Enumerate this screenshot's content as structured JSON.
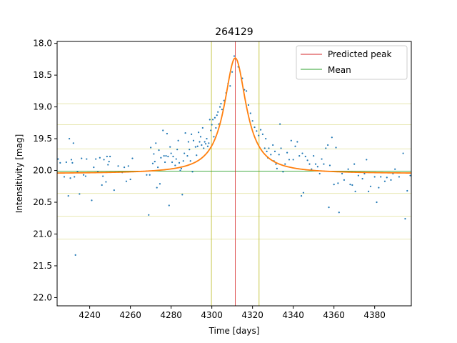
{
  "chart_data": {
    "type": "scatter",
    "title": "264129",
    "xlabel": "Time [days]",
    "ylabel": "Intensitivity [mag]",
    "xlim": [
      4224,
      4398
    ],
    "ylim": [
      22.13,
      17.97
    ],
    "y_inverted": true,
    "x_ticks": [
      4240,
      4260,
      4280,
      4300,
      4320,
      4340,
      4360,
      4380
    ],
    "y_ticks": [
      18.0,
      18.5,
      19.0,
      19.5,
      20.0,
      20.5,
      21.0,
      21.5,
      22.0
    ],
    "x_tick_labels": [
      "4240",
      "4260",
      "4280",
      "4300",
      "4320",
      "4340",
      "4360",
      "4380"
    ],
    "y_tick_labels": [
      "18.0",
      "18.5",
      "19.0",
      "19.5",
      "20.0",
      "20.5",
      "21.0",
      "21.5",
      "22.0"
    ],
    "legend": {
      "position": "top-right",
      "entries": [
        {
          "label": "Predicted peak",
          "color": "#d62728"
        },
        {
          "label": "Mean",
          "color": "#2ca02c"
        }
      ]
    },
    "predicted_peak": 4311.5,
    "mean": 20.01,
    "window_lines_x": [
      4299.8,
      4323.2
    ],
    "band_lines_y": [
      18.95,
      19.28,
      19.66,
      20.36,
      20.72,
      21.08
    ],
    "colors": {
      "points": "#1f77b4",
      "fit": "#ff7f0e",
      "peak": "#d62728",
      "mean": "#2ca02c",
      "window": "#bcbd22"
    },
    "fit": {
      "model": "lorentzian",
      "baseline": 20.05,
      "peak_x": 4311.5,
      "peak_y": 18.23,
      "gamma": 6.5
    },
    "series": [
      {
        "points": [
          [
            4224.5,
            19.82
          ],
          [
            4225.5,
            19.88
          ],
          [
            4227.5,
            20.1
          ],
          [
            4228.5,
            19.87
          ],
          [
            4229.5,
            20.4
          ],
          [
            4230,
            19.5
          ],
          [
            4230.5,
            20.12
          ],
          [
            4231,
            19.83
          ],
          [
            4231.5,
            19.88
          ],
          [
            4232,
            19.57
          ],
          [
            4232.5,
            20.1
          ],
          [
            4233,
            21.33
          ],
          [
            4234,
            20.02
          ],
          [
            4235,
            20.37
          ],
          [
            4236,
            19.81
          ],
          [
            4237,
            20.07
          ],
          [
            4238,
            20.09
          ],
          [
            4238.5,
            19.82
          ],
          [
            4241,
            20.47
          ],
          [
            4242,
            19.95
          ],
          [
            4243,
            19.82
          ],
          [
            4244,
            20.02
          ],
          [
            4245,
            19.8
          ],
          [
            4246,
            20.23
          ],
          [
            4246.5,
            20.09
          ],
          [
            4247,
            19.83
          ],
          [
            4248,
            20.18
          ],
          [
            4248.5,
            19.78
          ],
          [
            4249,
            19.91
          ],
          [
            4249.5,
            19.86
          ],
          [
            4250,
            19.78
          ],
          [
            4252,
            20.31
          ],
          [
            4254,
            19.93
          ],
          [
            4256,
            20.03
          ],
          [
            4257,
            19.95
          ],
          [
            4258,
            20.17
          ],
          [
            4259,
            19.93
          ],
          [
            4260,
            20.14
          ],
          [
            4261,
            19.81
          ],
          [
            4268,
            20.07
          ],
          [
            4269,
            20.7
          ],
          [
            4269.5,
            20.07
          ],
          [
            4270,
            19.64
          ],
          [
            4271,
            19.89
          ],
          [
            4271.5,
            19.74
          ],
          [
            4272,
            19.86
          ],
          [
            4272.5,
            19.57
          ],
          [
            4273,
            20.27
          ],
          [
            4273.5,
            19.95
          ],
          [
            4274,
            19.68
          ],
          [
            4274.5,
            20.21
          ],
          [
            4275,
            19.8
          ],
          [
            4276,
            19.37
          ],
          [
            4276.5,
            19.77
          ],
          [
            4277,
            19.87
          ],
          [
            4277.5,
            19.77
          ],
          [
            4278,
            19.42
          ],
          [
            4278.5,
            19.78
          ],
          [
            4279,
            20.55
          ],
          [
            4279.5,
            19.63
          ],
          [
            4280,
            19.73
          ],
          [
            4280.5,
            19.87
          ],
          [
            4281,
            19.78
          ],
          [
            4282,
            19.92
          ],
          [
            4282.5,
            19.82
          ],
          [
            4283,
            19.67
          ],
          [
            4283.5,
            19.53
          ],
          [
            4284,
            19.88
          ],
          [
            4284.5,
            20.0
          ],
          [
            4285,
            19.97
          ],
          [
            4285.5,
            20.38
          ],
          [
            4286,
            19.85
          ],
          [
            4286.5,
            19.73
          ],
          [
            4287,
            19.41
          ],
          [
            4288,
            19.77
          ],
          [
            4288.5,
            19.55
          ],
          [
            4289,
            19.67
          ],
          [
            4289.5,
            19.85
          ],
          [
            4290,
            19.43
          ],
          [
            4290.5,
            20.02
          ],
          [
            4291,
            19.53
          ],
          [
            4292,
            19.63
          ],
          [
            4292.5,
            19.76
          ],
          [
            4293,
            19.62
          ],
          [
            4293.5,
            19.4
          ],
          [
            4294,
            19.55
          ],
          [
            4294.5,
            19.47
          ],
          [
            4295,
            19.6
          ],
          [
            4295.5,
            19.33
          ],
          [
            4296,
            19.65
          ],
          [
            4296.5,
            19.55
          ],
          [
            4297,
            19.58
          ],
          [
            4297.5,
            19.5
          ],
          [
            4298,
            19.62
          ],
          [
            4298.5,
            19.57
          ],
          [
            4299,
            19.2
          ],
          [
            4299.5,
            19.37
          ],
          [
            4300,
            19.28
          ],
          [
            4300.5,
            19.2
          ],
          [
            4301,
            19.47
          ],
          [
            4301.5,
            19.17
          ],
          [
            4302,
            19.33
          ],
          [
            4302.5,
            19.13
          ],
          [
            4303,
            19.08
          ],
          [
            4303.5,
            19.27
          ],
          [
            4304,
            19.0
          ],
          [
            4304.5,
            18.95
          ],
          [
            4305,
            19.04
          ],
          [
            4306,
            18.9
          ],
          [
            4307,
            18.78
          ],
          [
            4308,
            18.63
          ],
          [
            4309,
            18.67
          ],
          [
            4310,
            18.45
          ],
          [
            4311,
            18.2
          ],
          [
            4313,
            18.37
          ],
          [
            4315,
            18.55
          ],
          [
            4316,
            18.73
          ],
          [
            4317,
            18.75
          ],
          [
            4318,
            18.97
          ],
          [
            4319,
            19.1
          ],
          [
            4320,
            19.22
          ],
          [
            4321,
            19.32
          ],
          [
            4322,
            19.38
          ],
          [
            4323,
            19.45
          ],
          [
            4324,
            19.36
          ],
          [
            4325,
            19.43
          ],
          [
            4326,
            19.65
          ],
          [
            4326.5,
            19.5
          ],
          [
            4327,
            19.7
          ],
          [
            4327.5,
            19.8
          ],
          [
            4328,
            19.65
          ],
          [
            4329,
            19.75
          ],
          [
            4330,
            19.6
          ],
          [
            4330.5,
            19.85
          ],
          [
            4331,
            19.7
          ],
          [
            4331.5,
            19.9
          ],
          [
            4332,
            19.97
          ],
          [
            4333,
            19.75
          ],
          [
            4333.5,
            19.27
          ],
          [
            4334,
            19.65
          ],
          [
            4335,
            20.02
          ],
          [
            4336,
            19.9
          ],
          [
            4337,
            19.72
          ],
          [
            4338,
            19.83
          ],
          [
            4339,
            19.53
          ],
          [
            4340,
            19.83
          ],
          [
            4341,
            19.62
          ],
          [
            4342,
            19.55
          ],
          [
            4343,
            19.77
          ],
          [
            4344,
            20.4
          ],
          [
            4344.5,
            19.73
          ],
          [
            4345,
            20.35
          ],
          [
            4346,
            19.78
          ],
          [
            4347,
            19.84
          ],
          [
            4348,
            19.9
          ],
          [
            4349,
            19.98
          ],
          [
            4350,
            19.77
          ],
          [
            4351,
            19.9
          ],
          [
            4352,
            19.94
          ],
          [
            4353,
            20.05
          ],
          [
            4354,
            19.82
          ],
          [
            4355,
            19.9
          ],
          [
            4356,
            19.65
          ],
          [
            4357,
            19.6
          ],
          [
            4357.5,
            20.58
          ],
          [
            4358,
            19.92
          ],
          [
            4359,
            19.48
          ],
          [
            4360,
            20.22
          ],
          [
            4361,
            19.64
          ],
          [
            4362,
            20.2
          ],
          [
            4362.5,
            20.66
          ],
          [
            4364,
            20.05
          ],
          [
            4365,
            20.15
          ],
          [
            4367,
            19.98
          ],
          [
            4368,
            20.22
          ],
          [
            4369,
            20.23
          ],
          [
            4370,
            19.9
          ],
          [
            4370.5,
            20.33
          ],
          [
            4372,
            20.08
          ],
          [
            4374,
            20.13
          ],
          [
            4375,
            20.05
          ],
          [
            4376,
            19.83
          ],
          [
            4377,
            20.33
          ],
          [
            4378,
            20.25
          ],
          [
            4380,
            20.1
          ],
          [
            4381,
            20.5
          ],
          [
            4382,
            20.27
          ],
          [
            4383,
            20.1
          ],
          [
            4385,
            20.17
          ],
          [
            4386,
            20.11
          ],
          [
            4388,
            20.15
          ],
          [
            4389,
            20.05
          ],
          [
            4390,
            19.98
          ],
          [
            4392,
            20.1
          ],
          [
            4394,
            19.73
          ],
          [
            4395,
            20.76
          ],
          [
            4396,
            20.32
          ],
          [
            4397.5,
            20.08
          ]
        ]
      }
    ]
  }
}
